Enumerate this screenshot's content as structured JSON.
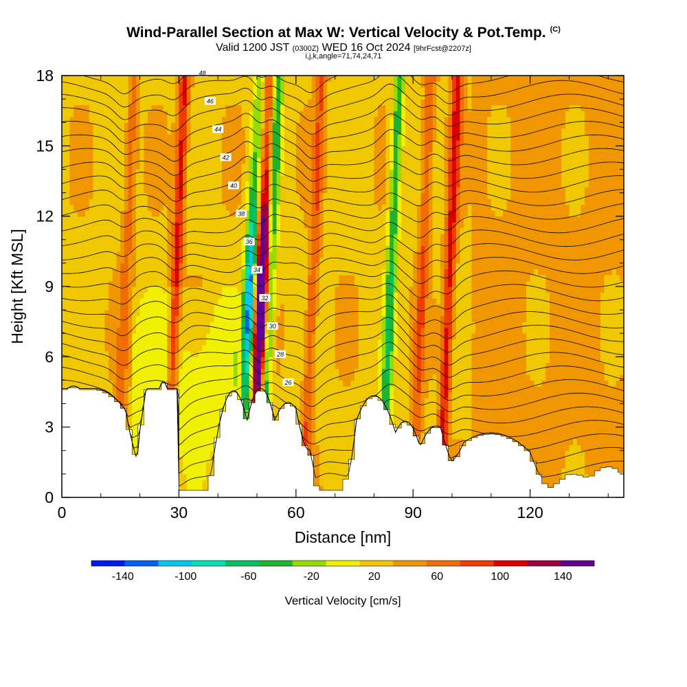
{
  "header": {
    "title": "Wind-Parallel Section at Max W: Vertical Velocity & Pot.Temp.",
    "copyright": "(C)",
    "valid_prefix": "Valid 1200 JST",
    "valid_utc": "(0300Z)",
    "valid_date": "WED 16 Oct 2024",
    "forecast": "[9hrFcst@2207z]",
    "indices": "i,j,k,angle=71,74,24,71"
  },
  "chart_data": {
    "type": "heatmap",
    "xlabel": "Distance [nm]",
    "ylabel": "Height [Kft MSL]",
    "xlim": [
      0,
      144
    ],
    "ylim": [
      0,
      18
    ],
    "x_ticks": [
      0,
      30,
      60,
      90,
      120
    ],
    "y_ticks": [
      0,
      3,
      6,
      9,
      12,
      15,
      18
    ],
    "grid": false,
    "colorbar": {
      "title": "Vertical Velocity [cm/s]",
      "levels": [
        -160,
        -140,
        -120,
        -100,
        -80,
        -60,
        -40,
        -20,
        0,
        20,
        40,
        60,
        80,
        100,
        120,
        140,
        160
      ],
      "labels": [
        "-140",
        "-100",
        "-60",
        "-20",
        "20",
        "60",
        "100",
        "140"
      ],
      "colors": [
        "#0018f0",
        "#0064f0",
        "#00c8f0",
        "#00e0b4",
        "#00c060",
        "#1eb432",
        "#96dc00",
        "#f0f000",
        "#f0c800",
        "#f09600",
        "#f06e00",
        "#f03c00",
        "#dc0000",
        "#a0003c",
        "#640096"
      ]
    },
    "theta_isolines_labels": [
      "26",
      "28",
      "30",
      "32",
      "34",
      "36",
      "38",
      "40",
      "42",
      "44",
      "46",
      "48"
    ],
    "vertical_velocity_features": [
      {
        "x": 16,
        "w_peak": 40
      },
      {
        "x": 29,
        "w_peak": 80
      },
      {
        "x": 51,
        "w_peak": 150
      },
      {
        "x": 48,
        "w_peak": -110
      },
      {
        "x": 53,
        "w_peak": -90
      },
      {
        "x": 64,
        "w_peak": 50
      },
      {
        "x": 92,
        "w_peak": 50
      },
      {
        "x": 99,
        "w_peak": 80
      },
      {
        "x": 84,
        "w_peak": -80
      }
    ]
  }
}
